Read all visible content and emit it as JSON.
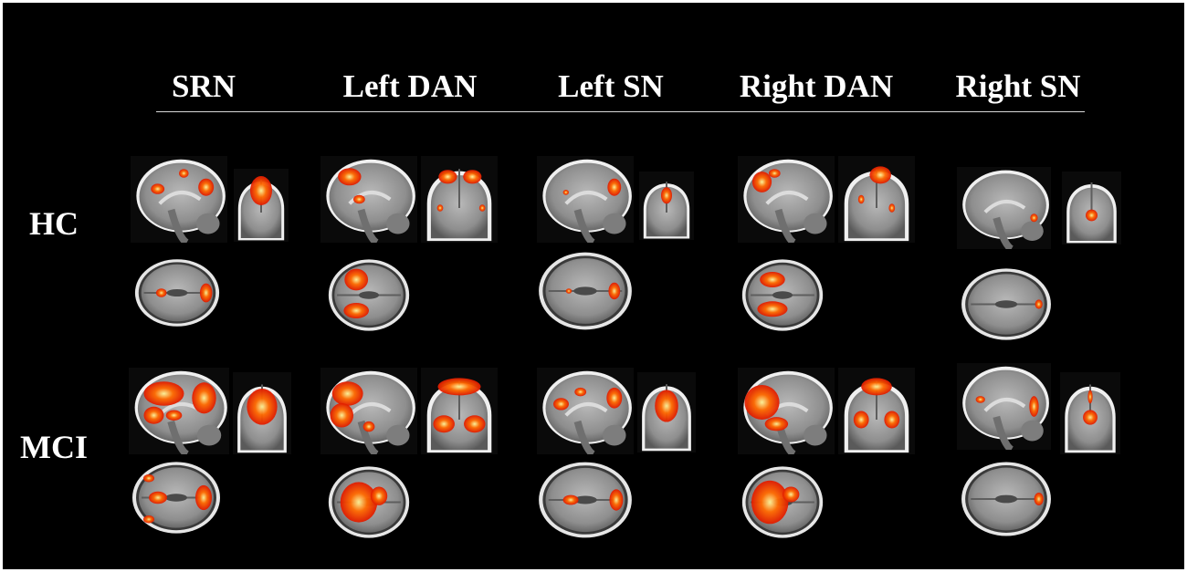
{
  "columns": [
    {
      "key": "srn",
      "label": "SRN"
    },
    {
      "key": "left-dan",
      "label": "Left DAN"
    },
    {
      "key": "left-sn",
      "label": "Left SN"
    },
    {
      "key": "right-dan",
      "label": "Right DAN"
    },
    {
      "key": "right-sn",
      "label": "Right SN"
    }
  ],
  "rows": [
    {
      "key": "hc",
      "label": "HC"
    },
    {
      "key": "mci",
      "label": "MCI"
    }
  ],
  "views": [
    "sagittal",
    "coronal",
    "axial"
  ],
  "colors": {
    "background": "#000000",
    "brain_tissue": "#8e8e8e",
    "activation_low": "#e01a00",
    "activation_mid": "#ff6a00",
    "activation_high": "#fff59a"
  }
}
